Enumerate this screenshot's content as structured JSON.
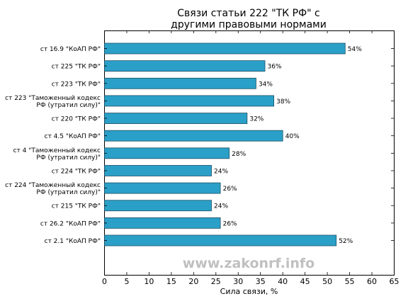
{
  "chart_data": {
    "type": "bar",
    "orientation": "horizontal",
    "title": "Связи статьи 222 \"ТК РФ\" с\nдругими правовыми нормами",
    "xlabel": "Сила связи, %",
    "ylabel": "",
    "xlim": [
      0,
      65
    ],
    "xticks": [
      0,
      5,
      10,
      15,
      20,
      25,
      30,
      35,
      40,
      45,
      50,
      55,
      60,
      65
    ],
    "grid": false,
    "bar_color": "#2aa0c8",
    "value_suffix": "%",
    "watermark": "www.zakonrf.info",
    "categories": [
      "ст 16.9 \"КоАП РФ\"",
      "ст 225 \"ТК РФ\"",
      "ст 223 \"ТК РФ\"",
      "ст 223 \"Таможенный кодекс\nРФ (утратил силу)\"",
      "ст 220 \"ТК РФ\"",
      "ст 4.5 \"КоАП РФ\"",
      "ст 4 \"Таможенный кодекс\nРФ (утратил силу)\"",
      "ст 224 \"ТК РФ\"",
      "ст 224 \"Таможенный кодекс\nРФ (утратил силу)\"",
      "ст 215 \"ТК РФ\"",
      "ст 26.2 \"КоАП РФ\"",
      "ст 2.1 \"КоАП РФ\""
    ],
    "values": [
      54,
      36,
      34,
      38,
      32,
      40,
      28,
      24,
      26,
      24,
      26,
      52
    ]
  }
}
